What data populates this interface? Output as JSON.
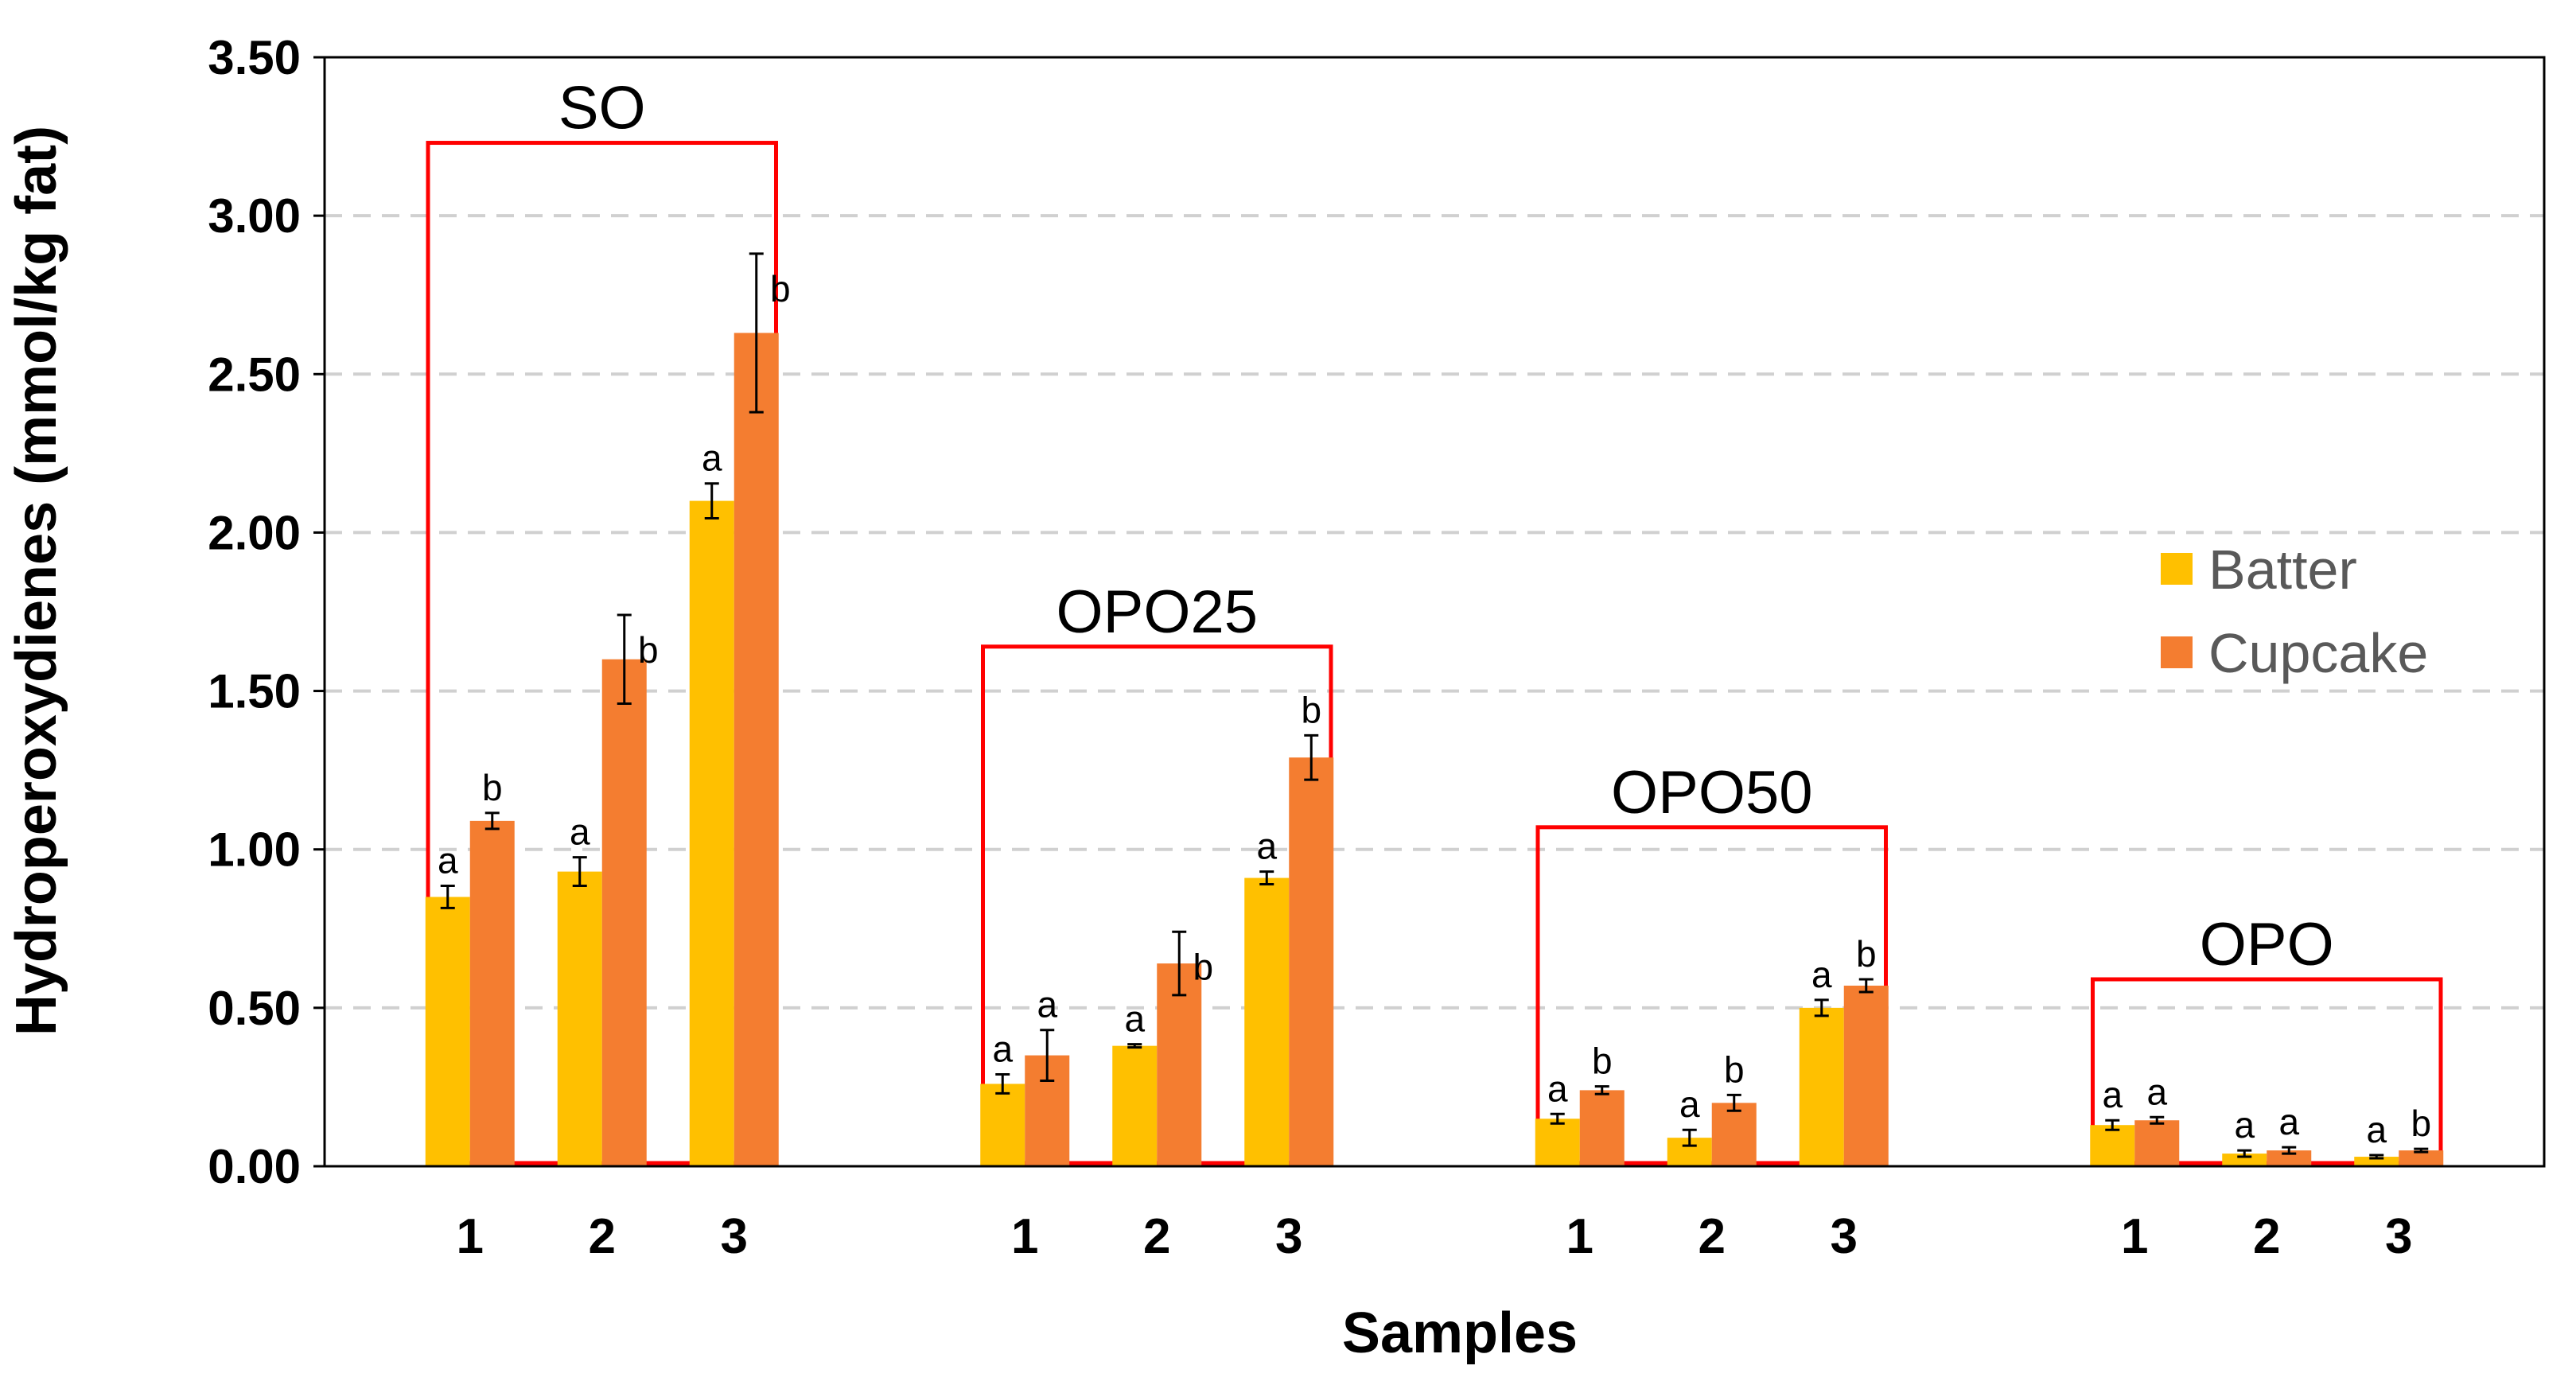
{
  "chart_data": {
    "type": "bar",
    "title": "",
    "xlabel": "Samples",
    "ylabel": "Hydroperoxydienes (mmol/kg fat)",
    "ylim": [
      0,
      3.5
    ],
    "yticks": [
      "0.00",
      "0.50",
      "1.00",
      "1.50",
      "2.00",
      "2.50",
      "3.00",
      "3.50"
    ],
    "grid": "horizontal dashed",
    "legend_position": "right",
    "series": [
      {
        "name": "Batter",
        "color": "#FFC000"
      },
      {
        "name": "Cupcake",
        "color": "#F47D30"
      }
    ],
    "groups": [
      {
        "name": "SO",
        "categories": [
          "1",
          "2",
          "3"
        ],
        "box_top": 3.23,
        "batter": {
          "values": [
            0.85,
            0.93,
            2.1
          ],
          "errors": [
            0.035,
            0.045,
            0.055
          ],
          "labels": [
            "a",
            "a",
            "a"
          ]
        },
        "cupcake": {
          "values": [
            1.09,
            1.6,
            2.63
          ],
          "errors": [
            0.025,
            0.14,
            0.25
          ],
          "labels": [
            "b",
            "b",
            "b"
          ]
        }
      },
      {
        "name": "OPO25",
        "categories": [
          "1",
          "2",
          "3"
        ],
        "box_top": 1.64,
        "batter": {
          "values": [
            0.26,
            0.38,
            0.91
          ],
          "errors": [
            0.03,
            0.005,
            0.02
          ],
          "labels": [
            "a",
            "a",
            "a"
          ]
        },
        "cupcake": {
          "values": [
            0.35,
            0.64,
            1.29
          ],
          "errors": [
            0.08,
            0.1,
            0.07
          ],
          "labels": [
            "a",
            "b",
            "b"
          ]
        }
      },
      {
        "name": "OPO50",
        "categories": [
          "1",
          "2",
          "3"
        ],
        "box_top": 1.07,
        "batter": {
          "values": [
            0.15,
            0.09,
            0.5
          ],
          "errors": [
            0.015,
            0.025,
            0.025
          ],
          "labels": [
            "a",
            "a",
            "a"
          ]
        },
        "cupcake": {
          "values": [
            0.24,
            0.2,
            0.57
          ],
          "errors": [
            0.012,
            0.025,
            0.02
          ],
          "labels": [
            "b",
            "b",
            "b"
          ]
        }
      },
      {
        "name": "OPO",
        "categories": [
          "1",
          "2",
          "3"
        ],
        "box_top": 0.59,
        "batter": {
          "values": [
            0.13,
            0.04,
            0.03
          ],
          "errors": [
            0.015,
            0.01,
            0.005
          ],
          "labels": [
            "a",
            "a",
            "a"
          ]
        },
        "cupcake": {
          "values": [
            0.145,
            0.05,
            0.05
          ],
          "errors": [
            0.01,
            0.01,
            0.005
          ],
          "labels": [
            "a",
            "a",
            "b"
          ]
        }
      }
    ]
  }
}
